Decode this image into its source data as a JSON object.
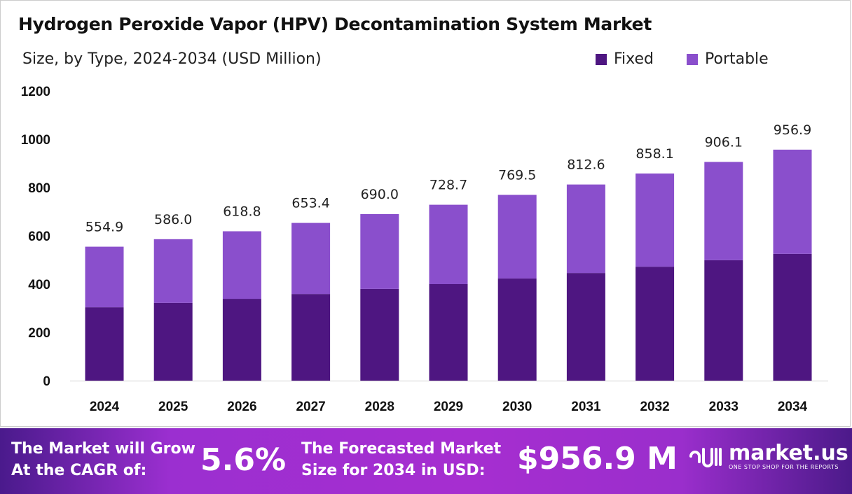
{
  "chart_data": {
    "type": "bar",
    "stacked": true,
    "title": "Hydrogen Peroxide Vapor (HPV) Decontamination System Market",
    "subtitle": "Size, by Type, 2024-2034 (USD Million)",
    "categories": [
      "2024",
      "2025",
      "2026",
      "2027",
      "2028",
      "2029",
      "2030",
      "2031",
      "2032",
      "2033",
      "2034"
    ],
    "series": [
      {
        "name": "Fixed",
        "color": "#4e1681",
        "values": [
          304,
          322,
          339,
          359,
          380,
          400,
          423,
          446,
          472,
          499,
          525
        ]
      },
      {
        "name": "Portable",
        "color": "#8a4fcc",
        "values": [
          250.9,
          264.0,
          279.8,
          294.4,
          310.0,
          328.7,
          346.5,
          366.6,
          386.1,
          407.1,
          431.9
        ]
      }
    ],
    "totals": [
      "554.9",
      "586.0",
      "618.8",
      "653.4",
      "690.0",
      "728.7",
      "769.5",
      "812.6",
      "858.1",
      "906.1",
      "956.9"
    ],
    "ylim": [
      0,
      1200
    ],
    "yticks": [
      "0",
      "200",
      "400",
      "600",
      "800",
      "1000",
      "1200"
    ],
    "grid": false,
    "legend": "top-right",
    "xlabel": "",
    "ylabel": ""
  },
  "banner": {
    "cagr_label_1": "The Market will Grow",
    "cagr_label_2": "At the CAGR of:",
    "cagr_value": "5.6%",
    "forecast_label_1": "The Forecasted Market",
    "forecast_label_2": "Size for 2034 in USD:",
    "forecast_value": "$956.9 M",
    "logo_name": "market.us",
    "logo_tagline": "ONE STOP SHOP FOR THE REPORTS"
  }
}
